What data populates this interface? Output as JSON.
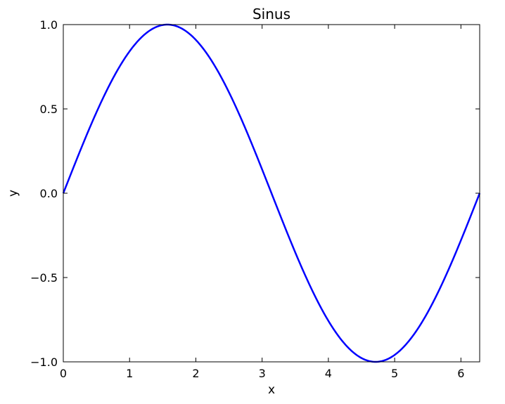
{
  "chart_data": {
    "type": "line",
    "title": "Sinus",
    "xlabel": "x",
    "ylabel": "y",
    "xlim": [
      0,
      6.283185307179586
    ],
    "ylim": [
      -1.0,
      1.0
    ],
    "x_ticks": [
      0,
      1,
      2,
      3,
      4,
      5,
      6
    ],
    "x_tick_labels": [
      "0",
      "1",
      "2",
      "3",
      "4",
      "5",
      "6"
    ],
    "y_ticks": [
      1.0,
      0.5,
      0.0,
      -0.5,
      -1.0
    ],
    "y_tick_labels": [
      "1.0",
      "0.5",
      "0.0",
      "−0.5",
      "−1.0"
    ],
    "grid": false,
    "series": [
      {
        "color": "#0000ff",
        "x": [
          0,
          0.2,
          0.4,
          0.6,
          0.8,
          1.0,
          1.2,
          1.4,
          1.5708,
          1.8,
          2.0,
          2.2,
          2.4,
          2.6,
          2.8,
          3.0,
          3.1416,
          3.4,
          3.6,
          3.8,
          4.0,
          4.2,
          4.4,
          4.6,
          4.7124,
          4.9,
          5.1,
          5.3,
          5.5,
          5.7,
          5.9,
          6.1,
          6.2832
        ],
        "y": [
          0.0,
          0.199,
          0.389,
          0.565,
          0.717,
          0.841,
          0.932,
          0.985,
          1.0,
          0.974,
          0.909,
          0.808,
          0.675,
          0.516,
          0.335,
          0.141,
          0.0,
          -0.256,
          -0.443,
          -0.612,
          -0.757,
          -0.872,
          -0.952,
          -0.994,
          -1.0,
          -0.982,
          -0.926,
          -0.832,
          -0.706,
          -0.551,
          -0.374,
          -0.182,
          0.0
        ]
      }
    ]
  }
}
